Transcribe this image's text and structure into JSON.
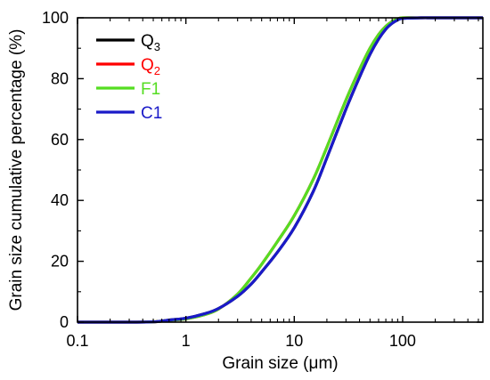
{
  "chart_data": {
    "type": "line",
    "xlabel": "Grain size (μm)",
    "ylabel": "Grain size cumulative percentage (%)",
    "x_scale": "log",
    "xlim": [
      0.1,
      550
    ],
    "ylim": [
      0,
      100
    ],
    "x_ticks": [
      0.1,
      1,
      10,
      100
    ],
    "x_tick_labels": [
      "0.1",
      "1",
      "10",
      "100"
    ],
    "y_ticks": [
      0,
      20,
      40,
      60,
      80,
      100
    ],
    "y_tick_labels": [
      "0",
      "20",
      "40",
      "60",
      "80",
      "100"
    ],
    "grid": false,
    "legend_position": "top-left",
    "series": [
      {
        "name": "Q",
        "subscript": "3",
        "color": "#000000",
        "label_color": "#000000",
        "x": [
          0.1,
          0.3,
          0.5,
          0.7,
          1,
          1.5,
          2,
          3,
          4,
          5,
          7,
          10,
          15,
          20,
          30,
          40,
          50,
          60,
          70,
          80,
          90,
          100,
          150,
          200,
          550
        ],
        "y": [
          0,
          0,
          0.1,
          0.7,
          1.3,
          2.8,
          4.5,
          8.5,
          12.5,
          16.5,
          23.0,
          31.0,
          43.0,
          54.0,
          70.0,
          80.5,
          88.0,
          93.0,
          96.3,
          98.2,
          99.3,
          99.8,
          100,
          100,
          100
        ]
      },
      {
        "name": "Q",
        "subscript": "2",
        "color": "#ff0000",
        "label_color": "#ff0000",
        "x": [
          0.1,
          0.3,
          0.5,
          0.7,
          1,
          1.5,
          2,
          3,
          4,
          5,
          7,
          10,
          15,
          20,
          30,
          40,
          50,
          60,
          70,
          80,
          90,
          100,
          150,
          200,
          550
        ],
        "y": [
          0,
          0,
          0.1,
          0.6,
          1.1,
          2.5,
          4.3,
          9.2,
          14.5,
          19.0,
          26.5,
          35.0,
          47.0,
          57.5,
          73.0,
          83.0,
          90.0,
          94.5,
          97.2,
          98.8,
          99.6,
          100,
          100,
          100,
          100
        ]
      },
      {
        "name": "F1",
        "color": "#55dd22",
        "label_color": "#55dd22",
        "x": [
          0.1,
          0.3,
          0.5,
          0.7,
          1,
          1.5,
          2,
          3,
          4,
          5,
          7,
          10,
          15,
          20,
          30,
          40,
          50,
          60,
          70,
          80,
          90,
          100,
          150,
          200,
          550
        ],
        "y": [
          0,
          0,
          0.1,
          0.6,
          1.1,
          2.5,
          4.3,
          9.2,
          14.5,
          19.0,
          26.5,
          35.0,
          47.0,
          57.5,
          73.0,
          83.0,
          90.0,
          94.5,
          97.2,
          98.8,
          99.6,
          100,
          100,
          100,
          100
        ]
      },
      {
        "name": "C1",
        "color": "#1a1ac8",
        "label_color": "#1a1ac8",
        "x": [
          0.1,
          0.3,
          0.5,
          0.7,
          1,
          1.5,
          2,
          3,
          4,
          5,
          7,
          10,
          15,
          20,
          30,
          40,
          50,
          60,
          70,
          80,
          90,
          100,
          150,
          200,
          550
        ],
        "y": [
          0,
          0,
          0.1,
          0.7,
          1.3,
          2.8,
          4.5,
          8.5,
          12.5,
          16.5,
          23.0,
          31.0,
          43.0,
          54.0,
          70.0,
          80.5,
          88.0,
          93.0,
          96.3,
          98.2,
          99.3,
          99.8,
          100,
          100,
          100
        ]
      }
    ]
  }
}
